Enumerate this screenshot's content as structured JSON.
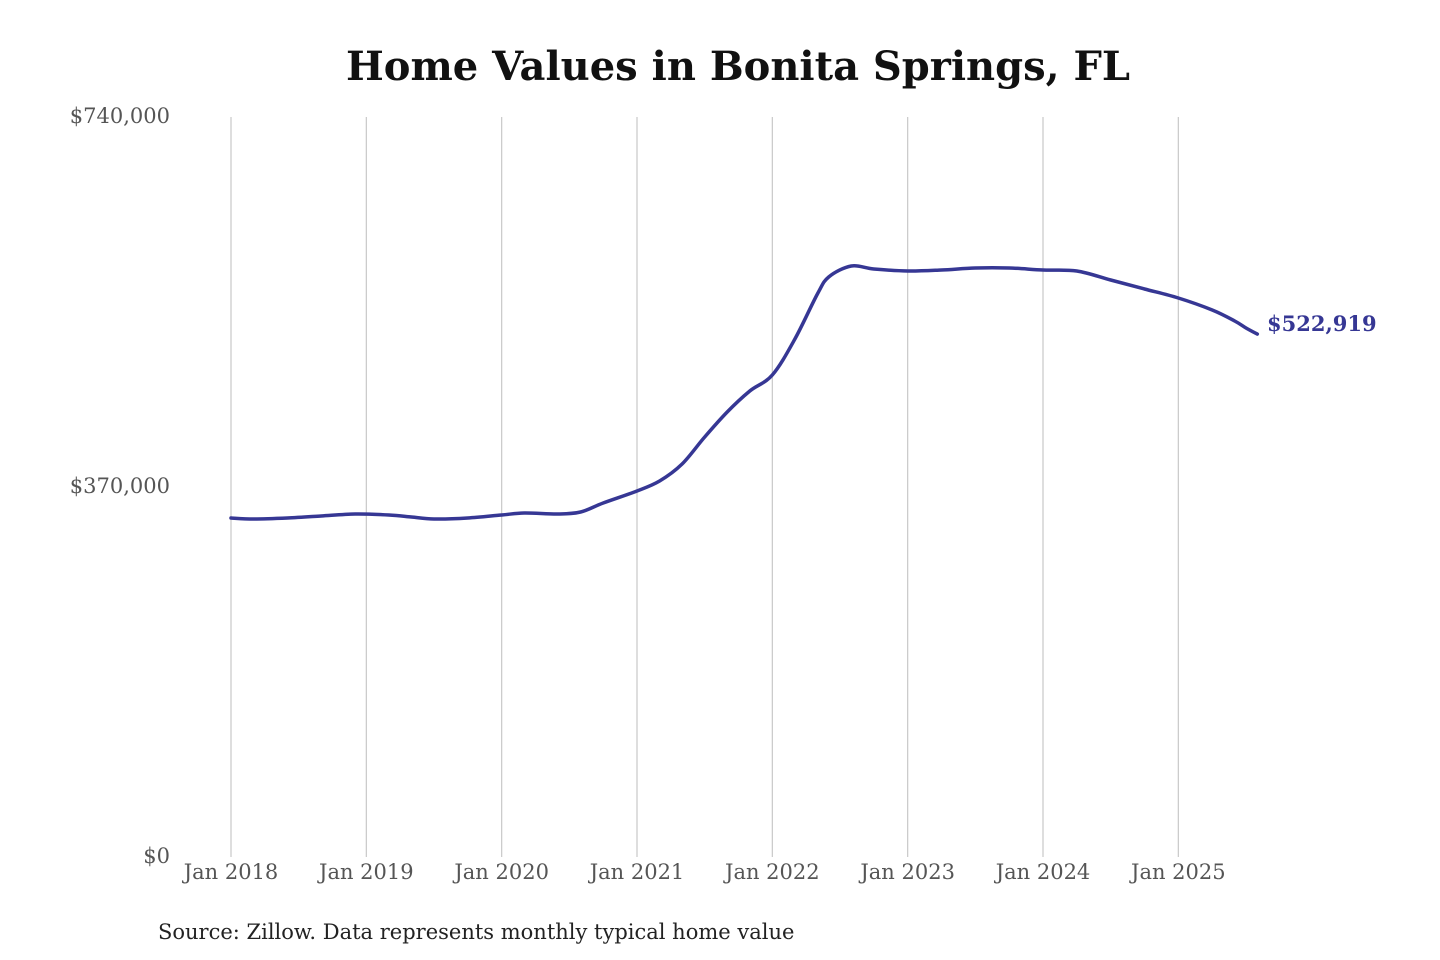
{
  "chart_data": {
    "type": "line",
    "title": "Home Values in Bonita Springs, FL",
    "xlabel": "",
    "ylabel": "",
    "ylim": [
      0,
      740000
    ],
    "y_ticks": [
      {
        "value": 0,
        "label": "$0"
      },
      {
        "value": 370000,
        "label": "$370,000"
      },
      {
        "value": 740000,
        "label": "$740,000"
      }
    ],
    "x_ticks": [
      {
        "value": 2018.0,
        "label": "Jan 2018"
      },
      {
        "value": 2019.0,
        "label": "Jan 2019"
      },
      {
        "value": 2020.0,
        "label": "Jan 2020"
      },
      {
        "value": 2021.0,
        "label": "Jan 2021"
      },
      {
        "value": 2022.0,
        "label": "Jan 2022"
      },
      {
        "value": 2023.0,
        "label": "Jan 2023"
      },
      {
        "value": 2024.0,
        "label": "Jan 2024"
      },
      {
        "value": 2025.0,
        "label": "Jan 2025"
      }
    ],
    "xlim": [
      2018.0,
      2025.5
    ],
    "grid": "vertical",
    "series": [
      {
        "color": "#363794",
        "end_label": "$522,919",
        "points": [
          {
            "x": "Jan 2018",
            "y": 339000
          },
          {
            "x": "Mar 2018",
            "y": 338000
          },
          {
            "x": "Jun 2018",
            "y": 339000
          },
          {
            "x": "Sep 2018",
            "y": 341000
          },
          {
            "x": "Dec 2018",
            "y": 343000
          },
          {
            "x": "Mar 2019",
            "y": 342000
          },
          {
            "x": "May 2019",
            "y": 340000
          },
          {
            "x": "Jul 2019",
            "y": 338000
          },
          {
            "x": "Oct 2019",
            "y": 339000
          },
          {
            "x": "Jan 2020",
            "y": 342000
          },
          {
            "x": "Mar 2020",
            "y": 344000
          },
          {
            "x": "Jun 2020",
            "y": 343000
          },
          {
            "x": "Aug 2020",
            "y": 345000
          },
          {
            "x": "Oct 2020",
            "y": 354000
          },
          {
            "x": "Jan 2021",
            "y": 366000
          },
          {
            "x": "Mar 2021",
            "y": 376000
          },
          {
            "x": "May 2021",
            "y": 393000
          },
          {
            "x": "Jul 2021",
            "y": 420000
          },
          {
            "x": "Sep 2021",
            "y": 445000
          },
          {
            "x": "Nov 2021",
            "y": 466000
          },
          {
            "x": "Jan 2022",
            "y": 482000
          },
          {
            "x": "Mar 2022",
            "y": 518000
          },
          {
            "x": "May 2022",
            "y": 563000
          },
          {
            "x": "Jun 2022",
            "y": 580000
          },
          {
            "x": "Aug 2022",
            "y": 591000
          },
          {
            "x": "Oct 2022",
            "y": 588000
          },
          {
            "x": "Jan 2023",
            "y": 586000
          },
          {
            "x": "Apr 2023",
            "y": 587000
          },
          {
            "x": "Jul 2023",
            "y": 589000
          },
          {
            "x": "Oct 2023",
            "y": 589000
          },
          {
            "x": "Jan 2024",
            "y": 587000
          },
          {
            "x": "Apr 2024",
            "y": 586000
          },
          {
            "x": "Jul 2024",
            "y": 577000
          },
          {
            "x": "Oct 2024",
            "y": 568000
          },
          {
            "x": "Jan 2025",
            "y": 559000
          },
          {
            "x": "Apr 2025",
            "y": 547000
          },
          {
            "x": "Jun 2025",
            "y": 536000
          },
          {
            "x": "Jul 2025",
            "y": 529000
          },
          {
            "x": "Aug 2025",
            "y": 522919
          }
        ]
      }
    ],
    "source": "Source: Zillow. Data represents monthly typical home value"
  }
}
